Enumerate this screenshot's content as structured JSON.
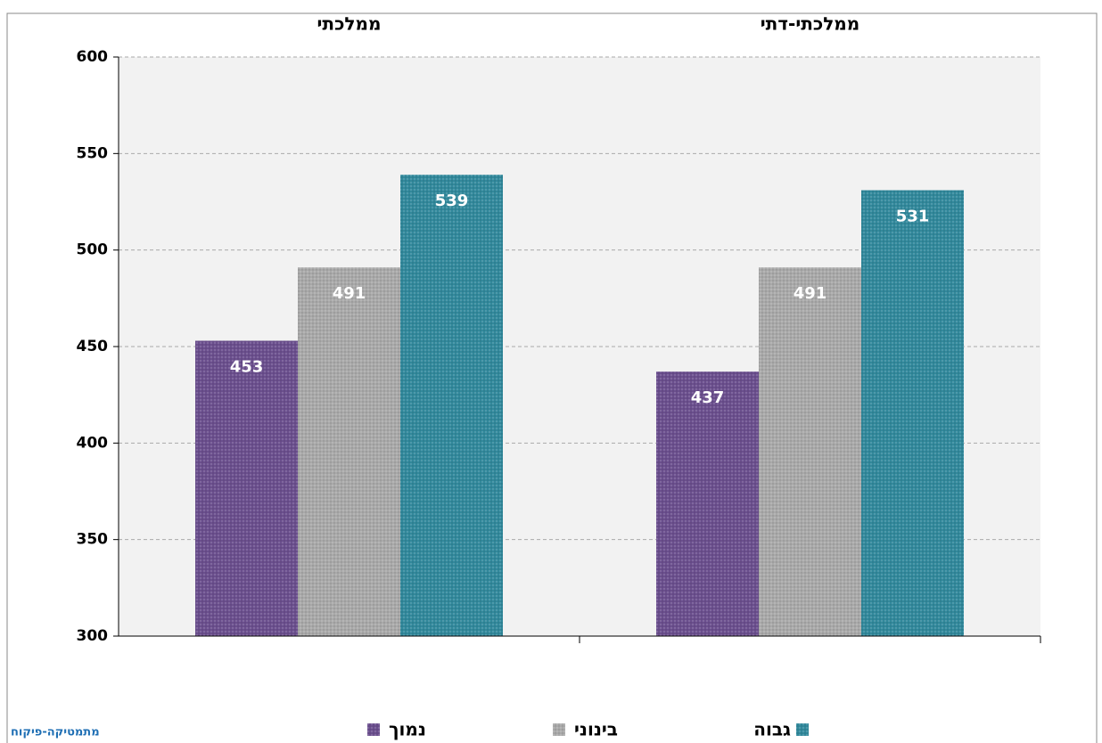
{
  "chart_data": {
    "type": "bar",
    "categories": [
      "ממלכתי",
      "ממלכתי-דתי"
    ],
    "series": [
      {
        "name": "נמוך",
        "color": "#6b4f8e",
        "values": [
          453,
          437
        ]
      },
      {
        "name": "בינוני",
        "color": "#a9a9a9",
        "values": [
          491,
          491
        ]
      },
      {
        "name": "גבוה",
        "color": "#32899c",
        "values": [
          539,
          531
        ]
      }
    ],
    "ylim": [
      300,
      600
    ],
    "yticks": [
      300,
      350,
      400,
      450,
      500,
      550,
      600
    ],
    "grid": true,
    "footer": "מתמטיקה-פיקוח"
  }
}
